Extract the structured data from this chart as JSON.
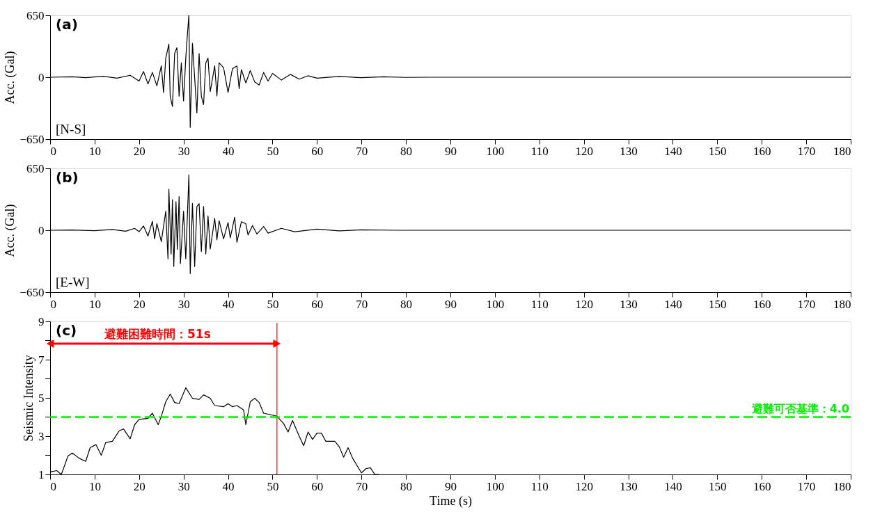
{
  "chart_data": [
    {
      "type": "line",
      "ylabel": "Acc. (Gal)",
      "annotations": [
        "(a)",
        "[N-S]"
      ],
      "xlim": [
        0,
        180
      ],
      "xticks": [
        0,
        10,
        20,
        30,
        40,
        50,
        60,
        70,
        80,
        90,
        100,
        110,
        120,
        130,
        140,
        150,
        160,
        170,
        180
      ],
      "ylim": [
        -650,
        650
      ],
      "yticks": [
        -650,
        0,
        650
      ],
      "grid": false,
      "series": [
        {
          "color": "#000000",
          "x": [
            0,
            5,
            8,
            12,
            15,
            18,
            20,
            21,
            22,
            23,
            24,
            25,
            25.5,
            26,
            26.7,
            27,
            27.5,
            28,
            28.5,
            29,
            29.5,
            30,
            30.5,
            30.8,
            31.2,
            31.5,
            32,
            33,
            33.5,
            34,
            34.5,
            35,
            35.5,
            36,
            37,
            37.5,
            38,
            39,
            40,
            41,
            42,
            42.5,
            43,
            44,
            45,
            46,
            47,
            48,
            49,
            50,
            52,
            54,
            56,
            58,
            60,
            65,
            70,
            75,
            80,
            85,
            180
          ],
          "values": [
            0,
            5,
            -5,
            10,
            -10,
            20,
            -40,
            60,
            -70,
            50,
            -90,
            120,
            -160,
            200,
            348,
            -200,
            -307,
            250,
            310,
            -200,
            150,
            -250,
            200,
            410,
            650,
            -527,
            358,
            -376,
            250,
            -200,
            -287,
            150,
            200,
            -150,
            120,
            -197,
            150,
            100,
            -159,
            90,
            118,
            -120,
            80,
            -60,
            70,
            -50,
            -82,
            50,
            -40,
            40,
            -30,
            30,
            -20,
            15,
            -10,
            8,
            -5,
            4,
            -2,
            0,
            0
          ]
        }
      ]
    },
    {
      "type": "line",
      "ylabel": "Acc. (Gal)",
      "annotations": [
        "(b)",
        "[E-W]"
      ],
      "xlim": [
        0,
        180
      ],
      "xticks": [
        0,
        10,
        20,
        30,
        40,
        50,
        60,
        70,
        80,
        90,
        100,
        110,
        120,
        130,
        140,
        150,
        160,
        170,
        180
      ],
      "ylim": [
        -650,
        650
      ],
      "yticks": [
        -650,
        0,
        650
      ],
      "grid": false,
      "series": [
        {
          "color": "#000000",
          "x": [
            0,
            5,
            10,
            14,
            17,
            19,
            20,
            21,
            22,
            23,
            23.5,
            24,
            25,
            26,
            26.5,
            26.7,
            27.2,
            27.5,
            27.8,
            28.3,
            28.6,
            29,
            29.3,
            30,
            30.5,
            31.2,
            31.5,
            32,
            32.5,
            33,
            33.5,
            34,
            34.5,
            35,
            35.5,
            36,
            37,
            37.5,
            38,
            39,
            40,
            40.5,
            41.5,
            42,
            43,
            44,
            44.5,
            45.5,
            46.5,
            48,
            49,
            52,
            55,
            60,
            65,
            70,
            78,
            180
          ],
          "values": [
            0,
            3,
            -5,
            8,
            -10,
            20,
            -15,
            45,
            -60,
            94,
            -91,
            70,
            -120,
            200,
            -300,
            430,
            -250,
            320,
            -380,
            300,
            -200,
            354,
            -350,
            200,
            -300,
            582,
            -455,
            282,
            -380,
            250,
            278,
            -223,
            250,
            -250,
            150,
            -197,
            126,
            -100,
            100,
            -90,
            81,
            -80,
            137,
            -126,
            90,
            68,
            -50,
            50,
            -40,
            40,
            -30,
            20,
            -15,
            12,
            -6,
            4,
            0,
            0
          ]
        }
      ]
    },
    {
      "type": "line",
      "xlabel": "Time (s)",
      "ylabel": "Seismic Intensity",
      "annotations": [
        "(c)"
      ],
      "xlim": [
        0,
        180
      ],
      "xticks": [
        0,
        10,
        20,
        30,
        40,
        50,
        60,
        70,
        80,
        90,
        100,
        110,
        120,
        130,
        140,
        150,
        160,
        170,
        180
      ],
      "ylim": [
        1,
        9
      ],
      "yticks": [
        1,
        {
          "value": 2,
          "label": null
        },
        3,
        {
          "value": 4,
          "label": null
        },
        5,
        {
          "value": 6,
          "label": null
        },
        7,
        {
          "value": 8,
          "label": null
        },
        9
      ],
      "grid": false,
      "ref_lines": [
        {
          "axis": "x",
          "value": 51,
          "label": "避難困難時間：51s",
          "color": "#ff0000",
          "line_style": "solid"
        },
        {
          "axis": "y",
          "value": 4,
          "label": "避難可否基準：4.0",
          "color": "#00ee00",
          "line_style": "dashed"
        }
      ],
      "series": [
        {
          "color": "#000000",
          "x": [
            0,
            1.5,
            2.5,
            3,
            4,
            5,
            6.5,
            8,
            9,
            10.3,
            11.5,
            12.5,
            14,
            15.5,
            16.5,
            18,
            19,
            20,
            22,
            23,
            24.3,
            25,
            26,
            27,
            28,
            29,
            30.5,
            32,
            33.5,
            34.5,
            36,
            37,
            39,
            40,
            41,
            42,
            43.5,
            44,
            45,
            46,
            47,
            48,
            50,
            51,
            52.5,
            53.5,
            54.5,
            56,
            57,
            58,
            59,
            60,
            61,
            62,
            64,
            65,
            66,
            67,
            68,
            70,
            71,
            72,
            73,
            74
          ],
          "values": [
            1.13,
            1.2,
            1.0,
            1.3,
            1.96,
            2.12,
            1.85,
            1.68,
            2.4,
            2.56,
            2.0,
            2.67,
            2.73,
            3.27,
            3.38,
            2.86,
            3.6,
            3.88,
            3.93,
            4.2,
            3.6,
            4.04,
            4.8,
            5.2,
            4.76,
            4.7,
            5.53,
            4.98,
            4.92,
            5.16,
            4.98,
            4.6,
            4.54,
            4.7,
            4.54,
            4.6,
            4.37,
            3.6,
            4.8,
            4.98,
            4.76,
            4.2,
            4.1,
            4.04,
            3.66,
            3.22,
            3.82,
            3.0,
            2.5,
            3.22,
            2.83,
            3.16,
            3.16,
            2.73,
            2.73,
            2.45,
            1.9,
            2.4,
            1.85,
            1.08,
            1.3,
            1.35,
            1.0,
            1.0
          ]
        }
      ]
    }
  ]
}
